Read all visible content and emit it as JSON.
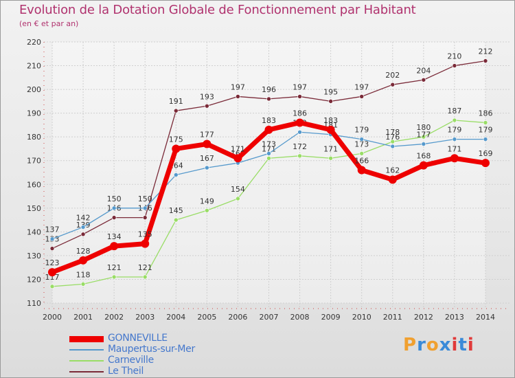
{
  "title": "Evolution de la Dotation Globale de Fonctionnement par Habitant",
  "subtitle": "(en € et par an)",
  "brand": {
    "letters": [
      "P",
      "r",
      "o",
      "x",
      "i",
      "t",
      "i"
    ],
    "colors": [
      "#f0a030",
      "#3a8ad8",
      "#f0a030",
      "#3a8ad8",
      "#e03a3a",
      "#3a8ad8",
      "#e03a3a"
    ]
  },
  "chart_data": {
    "type": "line",
    "title": "Evolution de la Dotation Globale de Fonctionnement par Habitant",
    "ylabel": "(en € et par an)",
    "xlabel": "",
    "categories": [
      "2000",
      "2001",
      "2002",
      "2003",
      "2004",
      "2005",
      "2006",
      "2007",
      "2008",
      "2009",
      "2010",
      "2011",
      "2012",
      "2013",
      "2014"
    ],
    "ylim": [
      110,
      220
    ],
    "yticks": [
      110,
      120,
      130,
      140,
      150,
      160,
      170,
      180,
      190,
      200,
      210,
      220
    ],
    "grid": true,
    "legend_position": "bottom-left",
    "series": [
      {
        "name": "Le Theil",
        "color": "#7a2a38",
        "values": [
          133,
          139,
          146,
          146,
          191,
          193,
          197,
          196,
          197,
          195,
          197,
          202,
          204,
          210,
          212
        ]
      },
      {
        "name": "Carneville",
        "color": "#99dd66",
        "values": [
          117,
          118,
          121,
          121,
          145,
          149,
          154,
          171,
          172,
          171,
          173,
          178,
          180,
          187,
          186
        ]
      },
      {
        "name": "Maupertus-sur-Mer",
        "color": "#5599cc",
        "values": [
          137,
          142,
          150,
          150,
          164,
          167,
          169,
          173,
          182,
          181,
          179,
          176,
          177,
          179,
          179
        ]
      },
      {
        "name": "GONNEVILLE",
        "color": "#ee0000",
        "values": [
          123,
          128,
          134,
          135,
          175,
          177,
          171,
          183,
          186,
          183,
          166,
          162,
          168,
          171,
          169
        ]
      }
    ],
    "legend": [
      "GONNEVILLE",
      "Maupertus-sur-Mer",
      "Carneville",
      "Le Theil"
    ]
  }
}
